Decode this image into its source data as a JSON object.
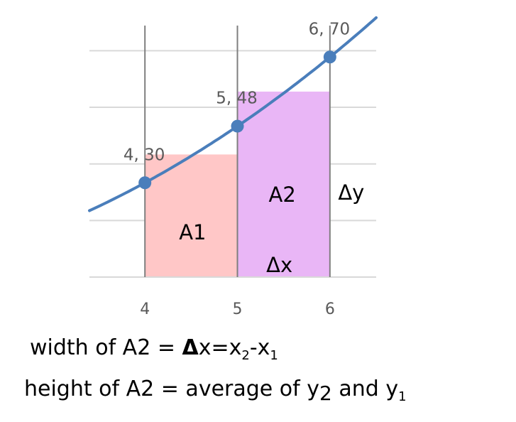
{
  "chart_data": {
    "type": "line",
    "x": [
      4,
      5,
      6
    ],
    "y": [
      30,
      48,
      70
    ],
    "point_labels": [
      "4, 30",
      "5, 48",
      "6, 70"
    ],
    "x_ticks": [
      "4",
      "5",
      "6"
    ],
    "xlim": [
      3.4,
      6.5
    ],
    "ylim": [
      0,
      80
    ],
    "grid": true,
    "regions": [
      {
        "name": "A1",
        "x0": 4,
        "x1": 5,
        "height": 39,
        "color": "#ffc7c7",
        "label": "A1"
      },
      {
        "name": "A2",
        "x0": 5,
        "x1": 6,
        "height": 59,
        "color": "#e9b6f6",
        "label": "A2"
      }
    ],
    "annotations": {
      "delta_x": "Δx",
      "delta_y": "Δy"
    },
    "colors": {
      "line": "#4a7ebb",
      "marker": "#4a7ebb",
      "grid": "#d9d9d9",
      "vline": "#7f7f7f"
    }
  },
  "captions": {
    "line1_prefix": "width of A2 = ",
    "line1_delta": "Δ",
    "line1_mid": "x=x",
    "line1_sub2": "2",
    "line1_dash": "-x",
    "line1_sub1": "1",
    "line2_text": "height of A2 = average of y",
    "line2_sub2": "2",
    "line2_and": " and y",
    "line2_sub1": "1"
  }
}
